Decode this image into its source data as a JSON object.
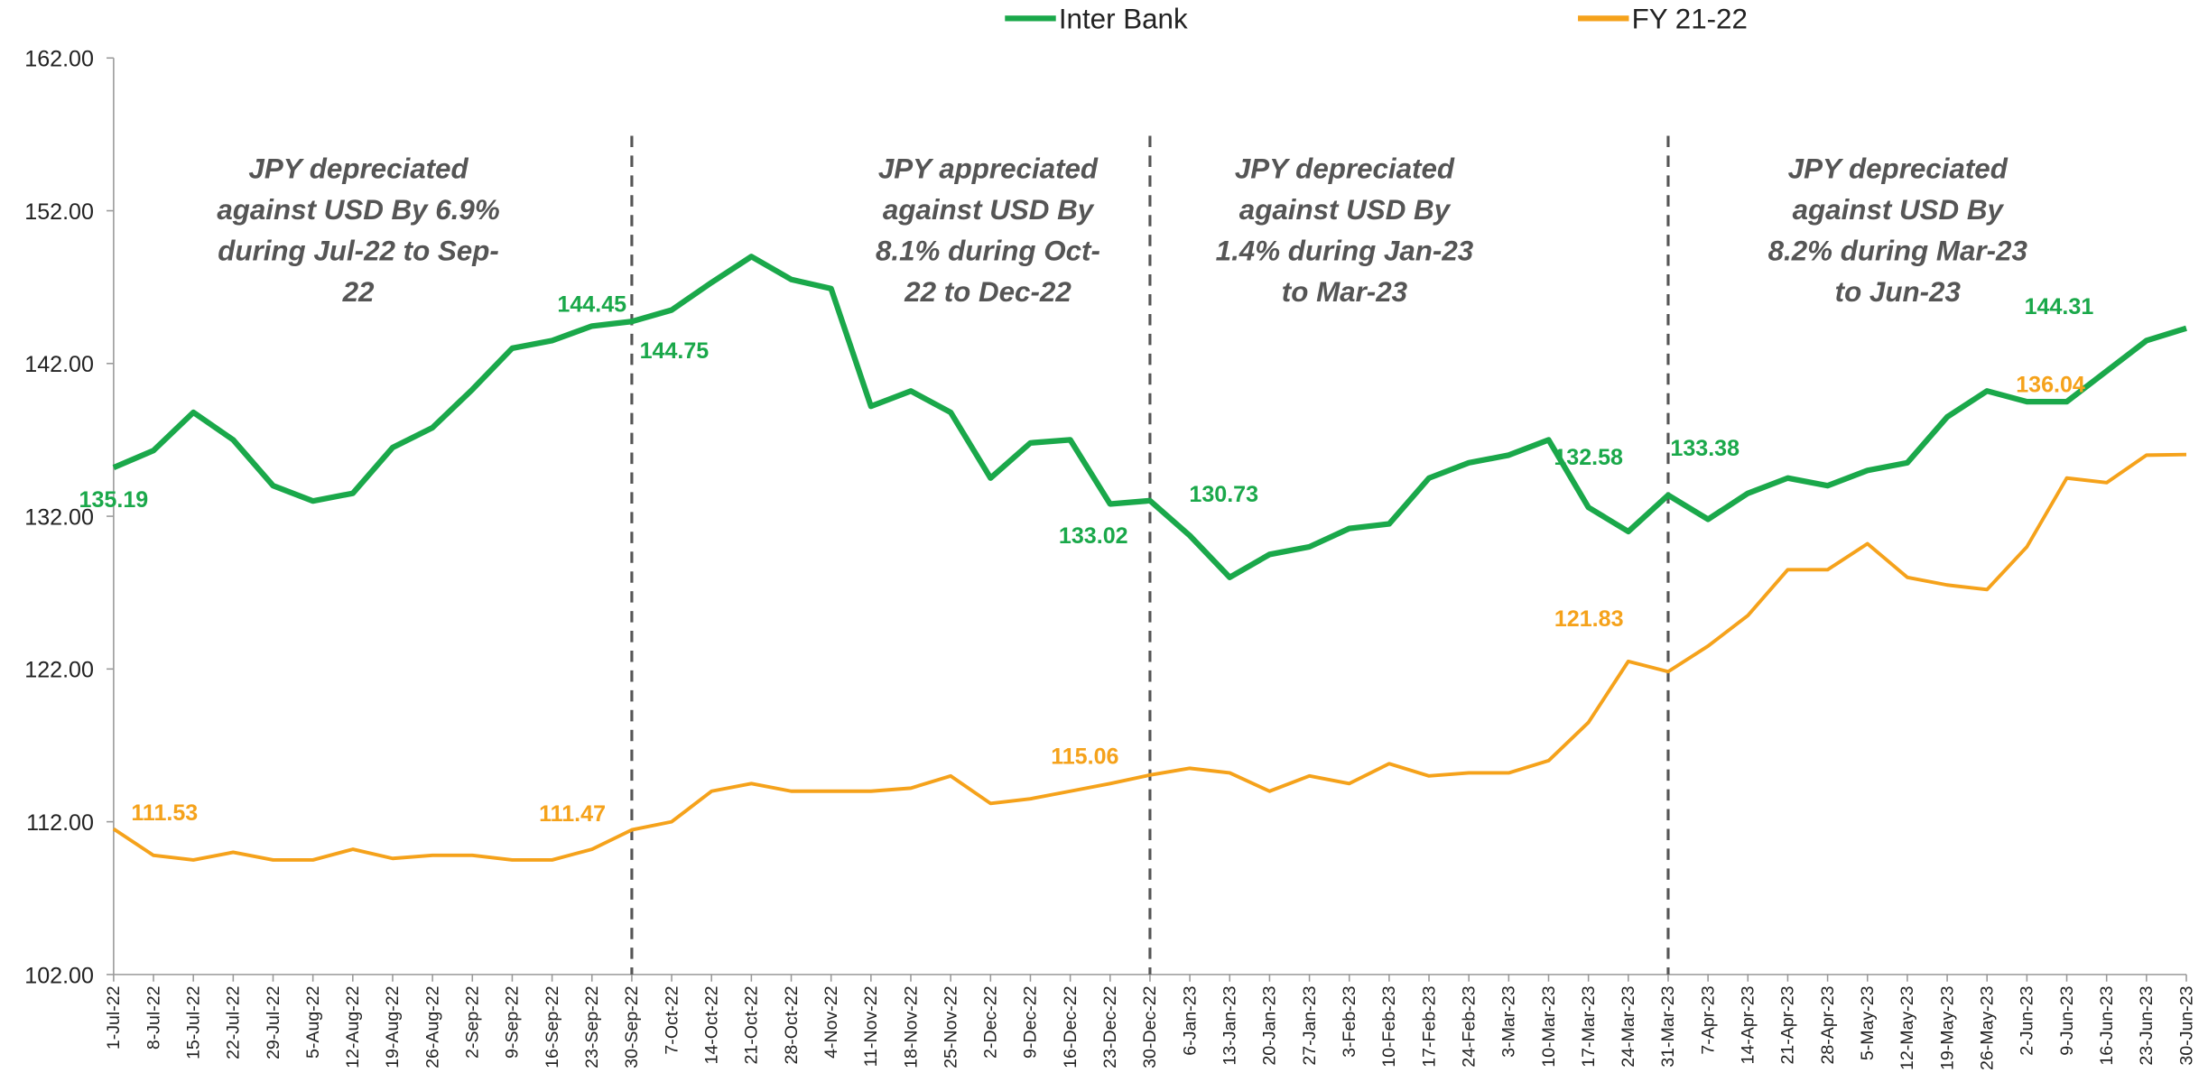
{
  "chart_data": {
    "type": "line",
    "categories": [
      "1-Jul-22",
      "8-Jul-22",
      "15-Jul-22",
      "22-Jul-22",
      "29-Jul-22",
      "5-Aug-22",
      "12-Aug-22",
      "19-Aug-22",
      "26-Aug-22",
      "2-Sep-22",
      "9-Sep-22",
      "16-Sep-22",
      "23-Sep-22",
      "30-Sep-22",
      "7-Oct-22",
      "14-Oct-22",
      "21-Oct-22",
      "28-Oct-22",
      "4-Nov-22",
      "11-Nov-22",
      "18-Nov-22",
      "25-Nov-22",
      "2-Dec-22",
      "9-Dec-22",
      "16-Dec-22",
      "23-Dec-22",
      "30-Dec-22",
      "6-Jan-23",
      "13-Jan-23",
      "20-Jan-23",
      "27-Jan-23",
      "3-Feb-23",
      "10-Feb-23",
      "17-Feb-23",
      "24-Feb-23",
      "3-Mar-23",
      "10-Mar-23",
      "17-Mar-23",
      "24-Mar-23",
      "31-Mar-23",
      "7-Apr-23",
      "14-Apr-23",
      "21-Apr-23",
      "28-Apr-23",
      "5-May-23",
      "12-May-23",
      "19-May-23",
      "26-May-23",
      "2-Jun-23",
      "9-Jun-23",
      "16-Jun-23",
      "23-Jun-23",
      "30-Jun-23"
    ],
    "series": [
      {
        "name": "Inter Bank",
        "color": "#1aa84a",
        "values": [
          135.19,
          136.3,
          138.8,
          137.0,
          134.0,
          133.0,
          133.5,
          136.5,
          137.8,
          140.3,
          143.0,
          143.5,
          144.45,
          144.75,
          145.5,
          147.3,
          149.0,
          147.5,
          146.9,
          139.2,
          140.2,
          138.8,
          134.5,
          136.8,
          137.0,
          132.8,
          133.02,
          130.73,
          128.0,
          129.5,
          130.0,
          131.2,
          131.5,
          134.5,
          135.5,
          136.0,
          137.0,
          132.58,
          131.0,
          133.38,
          131.8,
          133.5,
          134.5,
          134.0,
          135.0,
          135.5,
          138.5,
          140.2,
          139.5,
          139.5,
          141.5,
          143.5,
          144.31
        ],
        "value_labels": [
          "135.19",
          null,
          null,
          null,
          null,
          null,
          null,
          null,
          null,
          null,
          null,
          null,
          "144.45",
          "144.75",
          null,
          null,
          null,
          null,
          null,
          null,
          null,
          null,
          null,
          null,
          null,
          null,
          "133.02",
          "130.73",
          null,
          null,
          null,
          null,
          null,
          null,
          null,
          null,
          null,
          "132.58",
          null,
          "133.38",
          null,
          null,
          null,
          null,
          null,
          null,
          null,
          null,
          null,
          null,
          null,
          null,
          "144.31"
        ]
      },
      {
        "name": "FY 21-22",
        "color": "#f5a21b",
        "values": [
          111.53,
          109.8,
          109.5,
          110.0,
          109.5,
          109.5,
          110.2,
          109.6,
          109.8,
          109.8,
          109.5,
          109.5,
          110.2,
          111.47,
          112.0,
          114.0,
          114.5,
          114.0,
          114.0,
          114.0,
          114.2,
          115.0,
          113.2,
          113.5,
          114.0,
          114.5,
          115.06,
          115.5,
          115.2,
          114.0,
          115.0,
          114.5,
          115.8,
          115.0,
          115.2,
          115.2,
          116.0,
          118.5,
          122.5,
          121.83,
          123.5,
          125.5,
          128.5,
          128.5,
          130.2,
          128.0,
          127.5,
          127.2,
          130.0,
          134.5,
          134.2,
          136.0,
          136.04
        ],
        "value_labels": [
          "111.53",
          null,
          null,
          null,
          null,
          null,
          null,
          null,
          null,
          null,
          null,
          null,
          null,
          "111.47",
          null,
          null,
          null,
          null,
          null,
          null,
          null,
          null,
          null,
          null,
          null,
          null,
          "115.06",
          null,
          null,
          null,
          null,
          null,
          null,
          null,
          null,
          null,
          null,
          null,
          null,
          "121.83",
          null,
          null,
          null,
          null,
          null,
          null,
          null,
          null,
          null,
          null,
          null,
          null,
          "136.04"
        ]
      }
    ],
    "ylim": [
      102,
      162
    ],
    "yticks": [
      {
        "value": 102,
        "label": "102.00"
      },
      {
        "value": 112,
        "label": "112.00"
      },
      {
        "value": 122,
        "label": "122.00"
      },
      {
        "value": 132,
        "label": "132.00"
      },
      {
        "value": 142,
        "label": "142.00"
      },
      {
        "value": 152,
        "label": "152.00"
      },
      {
        "value": 162,
        "label": "162.00"
      }
    ],
    "grid": false,
    "legend": "top",
    "annotations": [
      [
        "JPY depreciated",
        "against USD By 6.9%",
        "during Jul-22 to Sep-",
        "22"
      ],
      [
        "JPY appreciated",
        "against USD By",
        "8.1% during Oct-",
        "22 to Dec-22"
      ],
      [
        "JPY depreciated",
        "against USD By",
        "1.4% during Jan-23",
        "to Mar-23"
      ],
      [
        "JPY depreciated",
        "against USD By",
        "8.2% during Mar-23",
        "to Jun-23"
      ]
    ]
  }
}
